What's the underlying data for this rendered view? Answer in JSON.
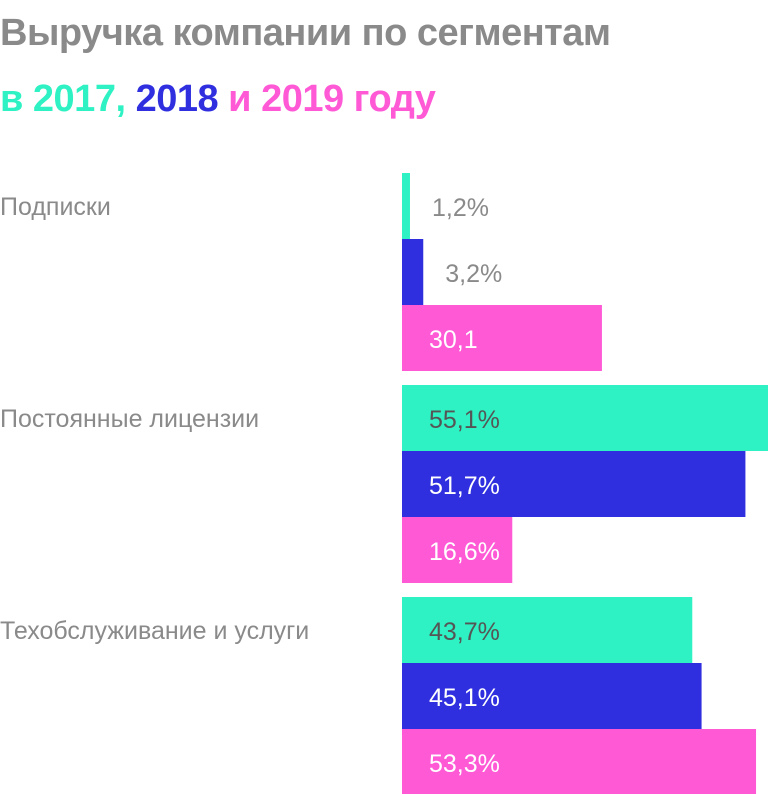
{
  "title": {
    "line1": "Выручка компании по сегментам",
    "line2_parts": [
      {
        "text": "в 2017,",
        "color": "#2ef2c3"
      },
      {
        "text": " 2018",
        "color": "#2f2fe0"
      },
      {
        "text": " и 2019 году",
        "color": "#ff59d6"
      }
    ]
  },
  "colors": {
    "label_gray": "#8a8a8a",
    "value_inside_light": "#555555",
    "value_inside_dark": "#ffffff",
    "value_outside": "#8a8a8a"
  },
  "chart_data": {
    "type": "bar",
    "orientation": "horizontal",
    "categories": [
      "Подписки",
      "Постоянные лицензии",
      "Техобслуживание и услуги"
    ],
    "series": [
      {
        "name": "2017",
        "color": "#2ef2c3",
        "values": [
          1.2,
          55.1,
          43.7
        ],
        "labels": [
          "1,2%",
          "55,1%",
          "43,7%"
        ]
      },
      {
        "name": "2018",
        "color": "#2f2fe0",
        "values": [
          3.2,
          51.7,
          45.1
        ],
        "labels": [
          "3,2%",
          "51,7%",
          "45,1%"
        ]
      },
      {
        "name": "2019",
        "color": "#ff59d6",
        "values": [
          30.1,
          16.6,
          53.3
        ],
        "labels": [
          "30,1",
          "16,6%",
          "53,3%"
        ]
      }
    ],
    "xlim": [
      0,
      55.1
    ],
    "grid": false,
    "legend": "title"
  }
}
